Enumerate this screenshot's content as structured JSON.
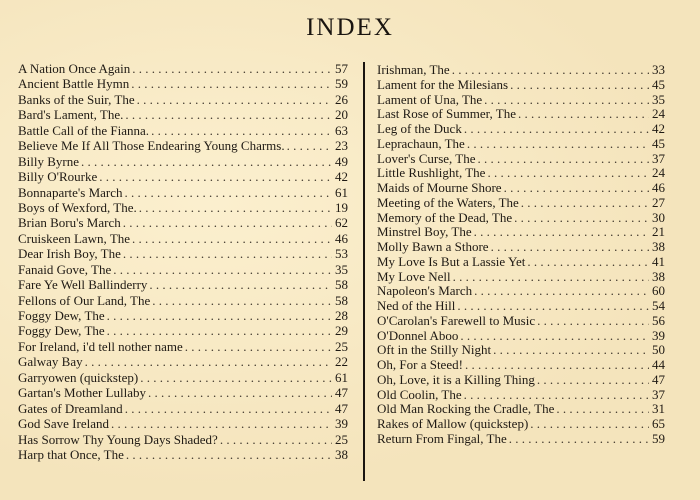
{
  "title": "INDEX",
  "left_column": [
    {
      "title": "A Nation Once Again",
      "page": "57"
    },
    {
      "title": "Ancient Battle Hymn",
      "page": "59"
    },
    {
      "title": "Banks of the Suir, The",
      "page": "26"
    },
    {
      "title": "Bard's Lament, The.",
      "page": "20"
    },
    {
      "title": "Battle Call of the Fianna.",
      "page": "63"
    },
    {
      "title": "Believe Me If All Those Endearing Young Charms.",
      "page": "23"
    },
    {
      "title": "Billy Byrne",
      "page": "49"
    },
    {
      "title": "Billy O'Rourke",
      "page": "42"
    },
    {
      "title": "Bonnaparte's March",
      "page": "61"
    },
    {
      "title": "Boys of  Wexford, The.",
      "page": "19"
    },
    {
      "title": "Brian Boru's March",
      "page": "62"
    },
    {
      "title": "Cruiskeen Lawn, The",
      "page": "46"
    },
    {
      "title": "Dear Irish Boy, The",
      "page": "53"
    },
    {
      "title": "Fanaid Gove, The",
      "page": "35"
    },
    {
      "title": "Fare Ye Well Ballinderry",
      "page": "58"
    },
    {
      "title": "Fellons of Our Land, The",
      "page": "58"
    },
    {
      "title": "Foggy Dew, The",
      "page": "28"
    },
    {
      "title": "Foggy Dew, The",
      "page": "29"
    },
    {
      "title": "For Ireland, i'd tell nother name",
      "page": "25"
    },
    {
      "title": "Galway Bay",
      "page": "22"
    },
    {
      "title": "Garryowen  (quickstep)",
      "page": "61"
    },
    {
      "title": "Gartan's Mother Lullaby",
      "page": "47"
    },
    {
      "title": "Gates of Dreamland",
      "page": "47"
    },
    {
      "title": "God Save Ireland",
      "page": "39"
    },
    {
      "title": "Has Sorrow Thy Young Days Shaded?",
      "page": "25"
    },
    {
      "title": "Harp that Once, The",
      "page": "38"
    }
  ],
  "right_column": [
    {
      "title": "Irishman, The",
      "page": "33"
    },
    {
      "title": "Lament for the Milesians",
      "page": "45"
    },
    {
      "title": "Lament of  Una, The",
      "page": "35"
    },
    {
      "title": "Last Rose of Summer, The",
      "page": "24"
    },
    {
      "title": "Leg of  the Duck",
      "page": "42"
    },
    {
      "title": "Leprachaun, The",
      "page": "45"
    },
    {
      "title": "Lover's Curse, The",
      "page": "37"
    },
    {
      "title": "Little Rushlight, The",
      "page": "24"
    },
    {
      "title": "Maids of Mourne Shore",
      "page": "46"
    },
    {
      "title": "Meeting of the Waters, The",
      "page": "27"
    },
    {
      "title": "Memory of  the Dead, The",
      "page": "30"
    },
    {
      "title": "Minstrel Boy, The",
      "page": "21"
    },
    {
      "title": "Molly Bawn a Sthore",
      "page": "38"
    },
    {
      "title": "My Love Is But a Lassie Yet",
      "page": "41"
    },
    {
      "title": "My Love Nell",
      "page": "38"
    },
    {
      "title": "Napoleon's March",
      "page": "60"
    },
    {
      "title": "Ned of the Hill",
      "page": "54"
    },
    {
      "title": "O'Carolan's Farewell to Music",
      "page": "56"
    },
    {
      "title": "O'Donnel Aboo",
      "page": "39"
    },
    {
      "title": "Oft in the Stilly Night",
      "page": "50"
    },
    {
      "title": "Oh, For a Steed!",
      "page": "44"
    },
    {
      "title": "Oh, Love, it is a Killing Thing",
      "page": "47"
    },
    {
      "title": "Old Coolin, The",
      "page": "37"
    },
    {
      "title": "Old Man Rocking the Cradle, The",
      "page": "31"
    },
    {
      "title": "Rakes of Mallow (quickstep)",
      "page": "65"
    },
    {
      "title": "Return From Fingal, The",
      "page": "59"
    }
  ]
}
